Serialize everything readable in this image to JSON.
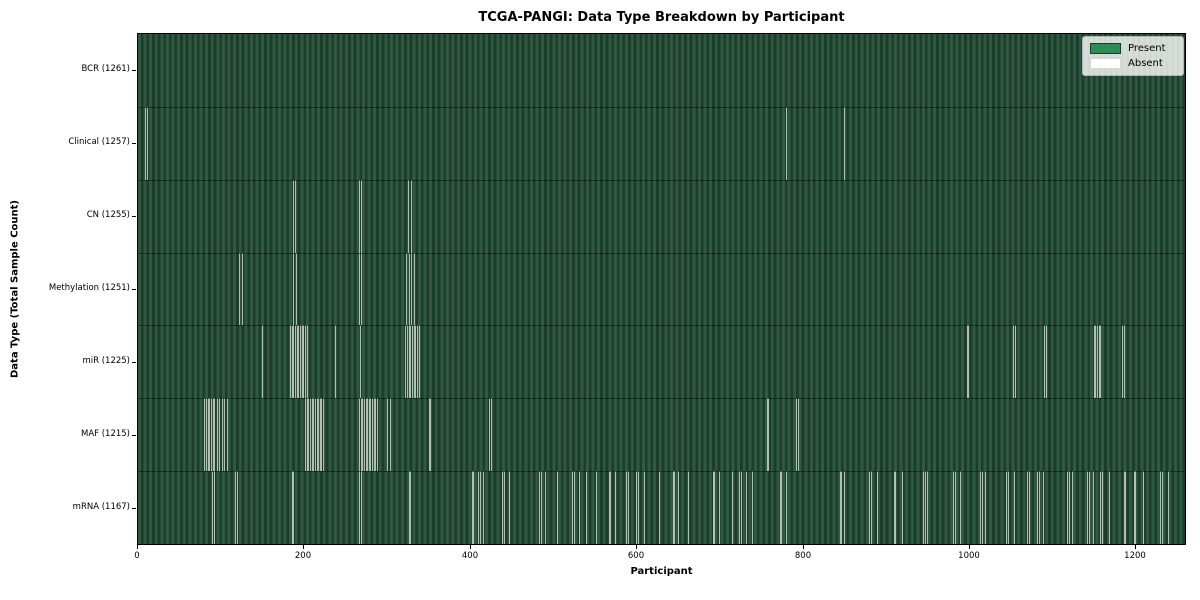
{
  "title": "TCGA-PANGI: Data Type Breakdown by Participant",
  "xlabel": "Participant",
  "ylabel": "Data Type (Total Sample Count)",
  "legend": {
    "present_label": "Present",
    "absent_label": "Absent"
  },
  "colors": {
    "present": "#2e8b57",
    "absent": "#ffffff",
    "bar_fill": "#2d5a43",
    "bar_edge": "#1e3b2b",
    "absent_line": "#b5beb5",
    "spine": "#000000"
  },
  "chart_data": {
    "type": "heatmap",
    "title": "TCGA-PANGI: Data Type Breakdown by Participant",
    "xlabel": "Participant",
    "ylabel": "Data Type (Total Sample Count)",
    "legend": [
      "Present",
      "Absent"
    ],
    "legend_position": "upper right",
    "grid": false,
    "total_participants": 1261,
    "x_ticks": [
      0,
      200,
      400,
      600,
      800,
      1000,
      1200
    ],
    "rows": [
      {
        "label": "BCR (1261)",
        "data_type": "BCR",
        "sample_count": 1261,
        "absent_participants": []
      },
      {
        "label": "Clinical (1257)",
        "data_type": "Clinical",
        "sample_count": 1257,
        "absent_participants": [
          8,
          11,
          781,
          850
        ]
      },
      {
        "label": "CN (1255)",
        "data_type": "CN",
        "sample_count": 1255,
        "absent_participants": [
          187,
          189,
          266,
          268,
          325,
          329
        ]
      },
      {
        "label": "Methylation (1251)",
        "data_type": "Methylation",
        "sample_count": 1251,
        "absent_participants": [
          122,
          125,
          187,
          190,
          266,
          269,
          323,
          326,
          329,
          332
        ]
      },
      {
        "label": "miR (1225)",
        "data_type": "miR",
        "sample_count": 1225,
        "absent_participants": [
          149,
          183,
          185,
          187,
          189,
          191,
          193,
          195,
          197,
          199,
          201,
          203,
          237,
          267,
          322,
          324,
          326,
          328,
          330,
          332,
          334,
          336,
          338,
          998,
          1000,
          1054,
          1056,
          1091,
          1093,
          1151,
          1153,
          1155,
          1157,
          1159,
          1185,
          1187
        ]
      },
      {
        "label": "MAF (1215)",
        "data_type": "MAF",
        "sample_count": 1215,
        "absent_participants": [
          80,
          82,
          84,
          86,
          88,
          90,
          92,
          95,
          98,
          101,
          104,
          107,
          201,
          203,
          205,
          207,
          209,
          211,
          213,
          215,
          217,
          219,
          221,
          223,
          266,
          268,
          270,
          272,
          274,
          276,
          278,
          280,
          282,
          284,
          286,
          288,
          300,
          303,
          350,
          352,
          423,
          425,
          757,
          759,
          793,
          795
        ]
      },
      {
        "label": "mRNA (1167)",
        "data_type": "mRNA",
        "sample_count": 1167,
        "absent_participants": [
          89,
          91,
          117,
          119,
          185,
          187,
          266,
          268,
          326,
          328,
          402,
          404,
          410,
          412,
          415,
          439,
          441,
          447,
          483,
          485,
          490,
          505,
          523,
          525,
          531,
          540,
          552,
          567,
          569,
          575,
          588,
          590,
          600,
          602,
          610,
          627,
          644,
          646,
          650,
          662,
          692,
          694,
          700,
          715,
          724,
          726,
          732,
          740,
          773,
          775,
          780,
          845,
          847,
          850,
          881,
          883,
          890,
          910,
          912,
          920,
          946,
          948,
          950,
          982,
          984,
          990,
          1014,
          1016,
          1020,
          1046,
          1048,
          1055,
          1071,
          1073,
          1083,
          1085,
          1090,
          1119,
          1121,
          1125,
          1143,
          1145,
          1150,
          1159,
          1161,
          1170,
          1187,
          1189,
          1199,
          1201,
          1210,
          1231,
          1233,
          1240
        ]
      }
    ]
  }
}
